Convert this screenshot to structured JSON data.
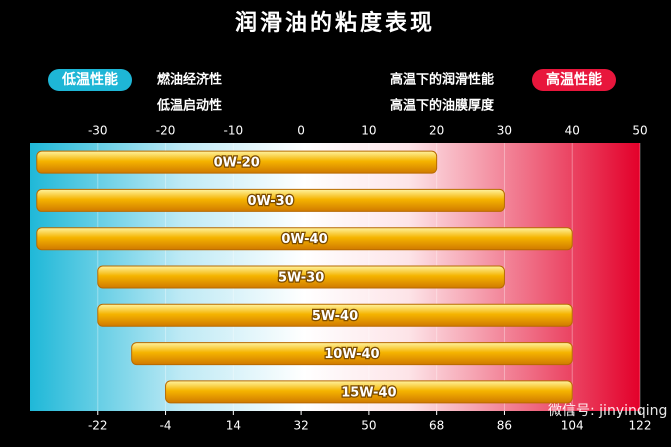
{
  "chart_data": {
    "type": "bar",
    "orientation": "horizontal",
    "title": "润滑油的粘度表现",
    "annotations": [
      "低温性能",
      "燃油经济性",
      "低温启动性",
      "高温下的润滑性能",
      "高温下的油膜厚度",
      "高温性能",
      "微信号: jinyinqing"
    ],
    "categories": [
      "0W-20",
      "0W-30",
      "0W-40",
      "5W-30",
      "5W-40",
      "10W-40",
      "15W-40"
    ],
    "low": [
      -39,
      -39,
      -39,
      -30,
      -30,
      -25,
      -20
    ],
    "high": [
      20,
      30,
      40,
      30,
      40,
      40,
      40
    ],
    "color": "#f5b400",
    "xlim": [
      -40,
      50
    ],
    "xticks": [
      -30,
      -20,
      -10,
      0,
      10,
      20,
      30,
      40,
      50
    ],
    "x2lim": [
      -40,
      122
    ],
    "x2ticks": [
      -22,
      -4,
      14,
      32,
      50,
      68,
      86,
      104,
      122
    ],
    "grid": true
  }
}
